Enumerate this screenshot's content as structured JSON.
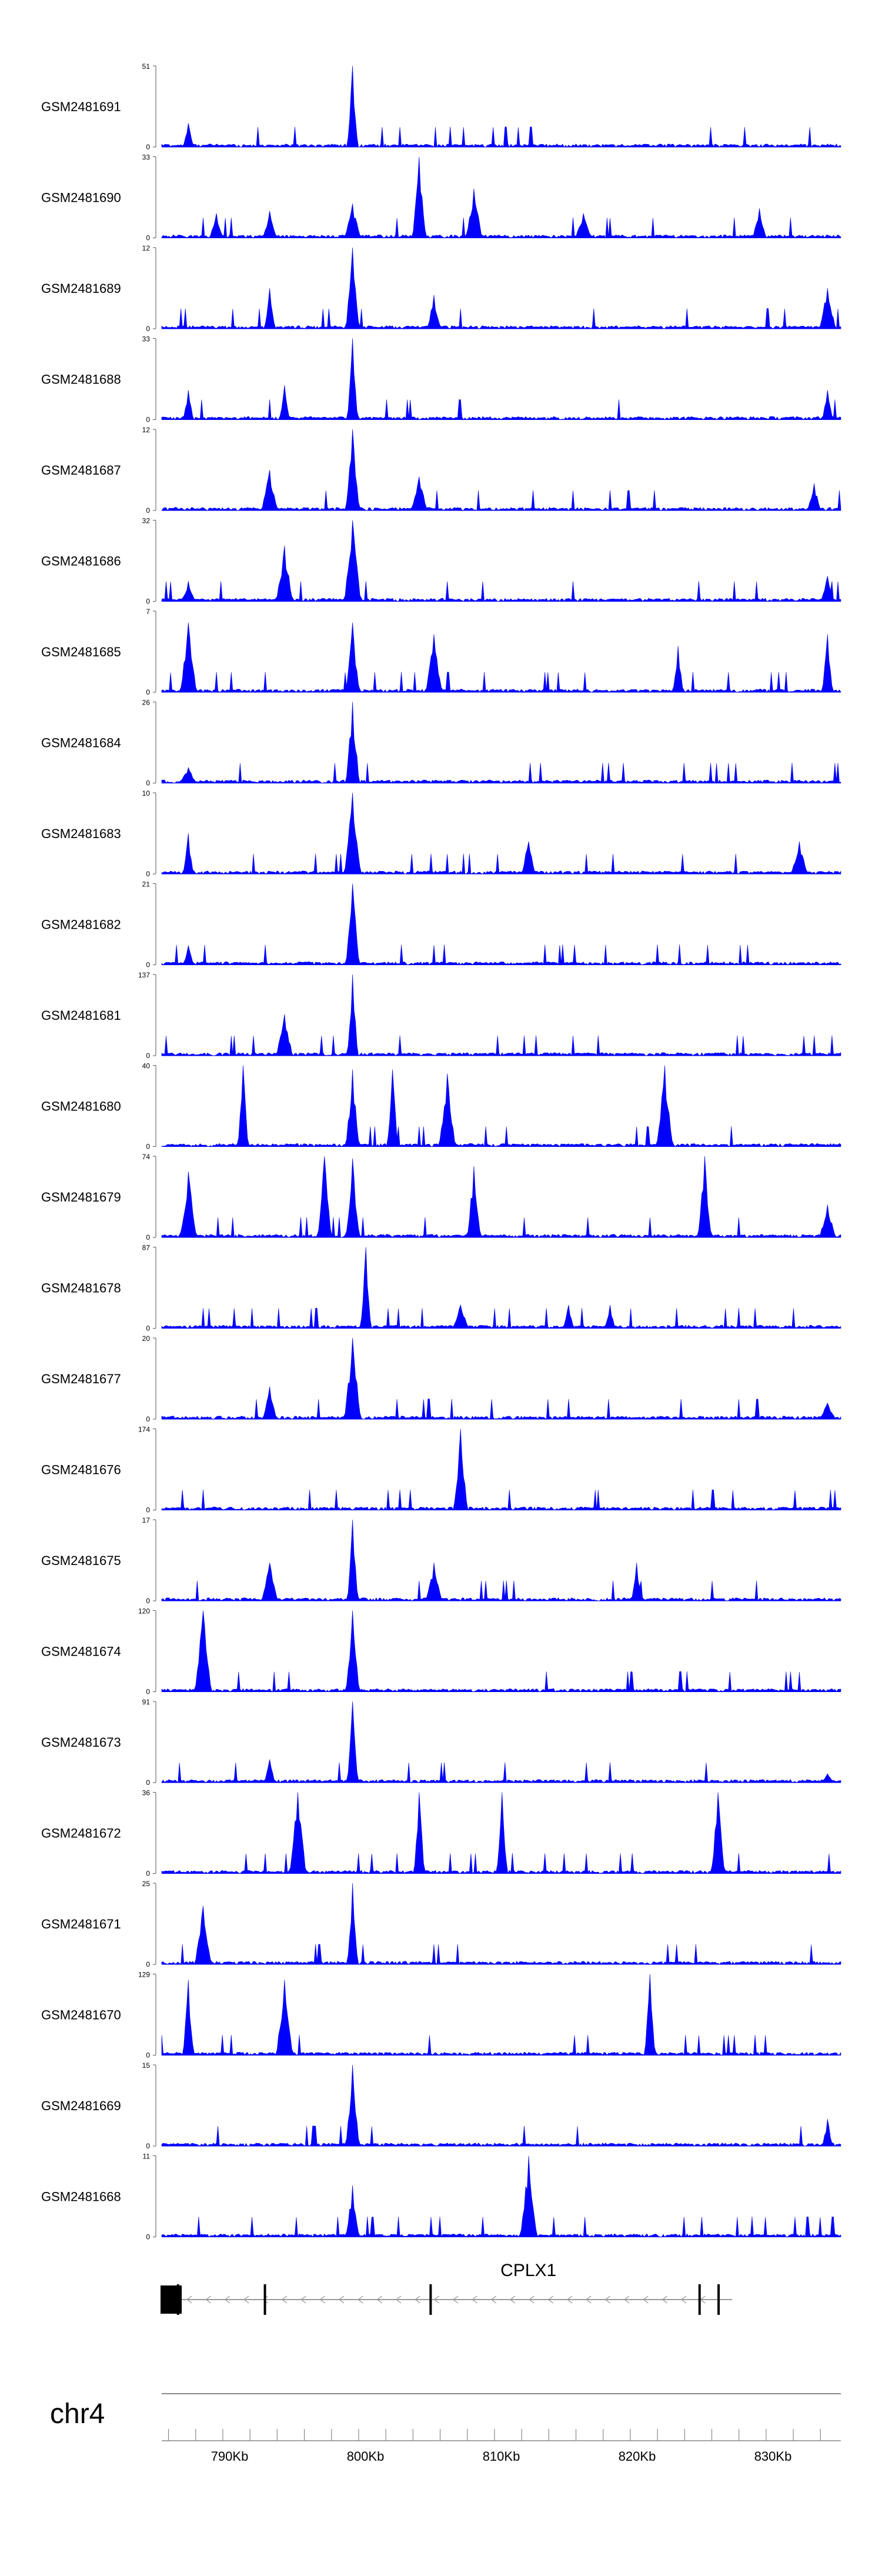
{
  "chart_data": {
    "type": "area",
    "title": "",
    "chromosome": "chr4",
    "series_color": "#0000ff",
    "region_kb": [
      785,
      835
    ],
    "series": [
      {
        "name": "GSM2481691",
        "ymax": "51",
        "peaks": [
          [
            787,
            15
          ],
          [
            799,
            51
          ]
        ]
      },
      {
        "name": "GSM2481690",
        "ymax": "33",
        "peaks": [
          [
            789,
            10
          ],
          [
            793,
            11
          ],
          [
            799,
            14
          ],
          [
            804,
            33
          ],
          [
            808,
            20
          ],
          [
            816,
            10
          ],
          [
            829,
            12
          ]
        ]
      },
      {
        "name": "GSM2481689",
        "ymax": "12",
        "peaks": [
          [
            793,
            6
          ],
          [
            799,
            12
          ],
          [
            805,
            5
          ],
          [
            834,
            6
          ]
        ]
      },
      {
        "name": "GSM2481688",
        "ymax": "33",
        "peaks": [
          [
            787,
            12
          ],
          [
            794,
            14
          ],
          [
            799,
            33
          ],
          [
            834,
            12
          ]
        ]
      },
      {
        "name": "GSM2481687",
        "ymax": "12",
        "peaks": [
          [
            793,
            6
          ],
          [
            799,
            12
          ],
          [
            804,
            5
          ],
          [
            833,
            4
          ]
        ]
      },
      {
        "name": "GSM2481686",
        "ymax": "32",
        "peaks": [
          [
            787,
            8
          ],
          [
            794,
            22
          ],
          [
            799,
            32
          ],
          [
            834,
            10
          ]
        ]
      },
      {
        "name": "GSM2481685",
        "ymax": "7",
        "peaks": [
          [
            787,
            6
          ],
          [
            799,
            6
          ],
          [
            805,
            5
          ],
          [
            823,
            4
          ],
          [
            834,
            5
          ]
        ]
      },
      {
        "name": "GSM2481684",
        "ymax": "26",
        "peaks": [
          [
            787,
            5
          ],
          [
            799,
            26
          ]
        ]
      },
      {
        "name": "GSM2481683",
        "ymax": "10",
        "peaks": [
          [
            787,
            5
          ],
          [
            799,
            10
          ],
          [
            812,
            4
          ],
          [
            832,
            4
          ]
        ]
      },
      {
        "name": "GSM2481682",
        "ymax": "21",
        "peaks": [
          [
            787,
            5
          ],
          [
            799,
            21
          ]
        ]
      },
      {
        "name": "GSM2481681",
        "ymax": "137",
        "peaks": [
          [
            794,
            70
          ],
          [
            799,
            137
          ]
        ]
      },
      {
        "name": "GSM2481680",
        "ymax": "40",
        "peaks": [
          [
            791,
            40
          ],
          [
            799,
            38
          ],
          [
            802,
            38
          ],
          [
            806,
            36
          ],
          [
            822,
            40
          ]
        ]
      },
      {
        "name": "GSM2481679",
        "ymax": "74",
        "peaks": [
          [
            787,
            60
          ],
          [
            797,
            74
          ],
          [
            799,
            72
          ],
          [
            808,
            65
          ],
          [
            825,
            74
          ],
          [
            834,
            30
          ]
        ]
      },
      {
        "name": "GSM2481678",
        "ymax": "87",
        "peaks": [
          [
            800,
            87
          ],
          [
            807,
            25
          ],
          [
            815,
            25
          ],
          [
            818,
            25
          ]
        ]
      },
      {
        "name": "GSM2481677",
        "ymax": "20",
        "peaks": [
          [
            793,
            8
          ],
          [
            799,
            20
          ],
          [
            834,
            4
          ]
        ]
      },
      {
        "name": "GSM2481676",
        "ymax": "174",
        "peaks": [
          [
            807,
            174
          ]
        ]
      },
      {
        "name": "GSM2481675",
        "ymax": "17",
        "peaks": [
          [
            793,
            8
          ],
          [
            799,
            17
          ],
          [
            805,
            8
          ],
          [
            820,
            8
          ]
        ]
      },
      {
        "name": "GSM2481674",
        "ymax": "120",
        "peaks": [
          [
            788,
            120
          ],
          [
            799,
            120
          ]
        ]
      },
      {
        "name": "GSM2481673",
        "ymax": "91",
        "peaks": [
          [
            793,
            26
          ],
          [
            799,
            91
          ],
          [
            834,
            10
          ]
        ]
      },
      {
        "name": "GSM2481672",
        "ymax": "36",
        "peaks": [
          [
            795,
            36
          ],
          [
            804,
            36
          ],
          [
            810,
            36
          ],
          [
            826,
            36
          ]
        ]
      },
      {
        "name": "GSM2481671",
        "ymax": "25",
        "peaks": [
          [
            788,
            18
          ],
          [
            799,
            25
          ]
        ]
      },
      {
        "name": "GSM2481670",
        "ymax": "129",
        "peaks": [
          [
            787,
            120
          ],
          [
            794,
            120
          ],
          [
            821,
            129
          ]
        ]
      },
      {
        "name": "GSM2481669",
        "ymax": "15",
        "peaks": [
          [
            799,
            15
          ],
          [
            834,
            5
          ]
        ]
      },
      {
        "name": "GSM2481668",
        "ymax": "11",
        "peaks": [
          [
            812,
            11
          ],
          [
            799,
            7
          ]
        ]
      }
    ],
    "gene": {
      "name": "CPLX1",
      "strand": "-",
      "start_kb": 785,
      "end_kb": 827,
      "exons_kb": [
        786.2,
        792.6,
        804.8,
        824.6,
        826
      ]
    },
    "xaxis": {
      "tick_labels": [
        "790Kb",
        "800Kb",
        "810Kb",
        "820Kb",
        "830Kb"
      ],
      "tick_values_kb": [
        790,
        800,
        810,
        820,
        830
      ]
    }
  }
}
